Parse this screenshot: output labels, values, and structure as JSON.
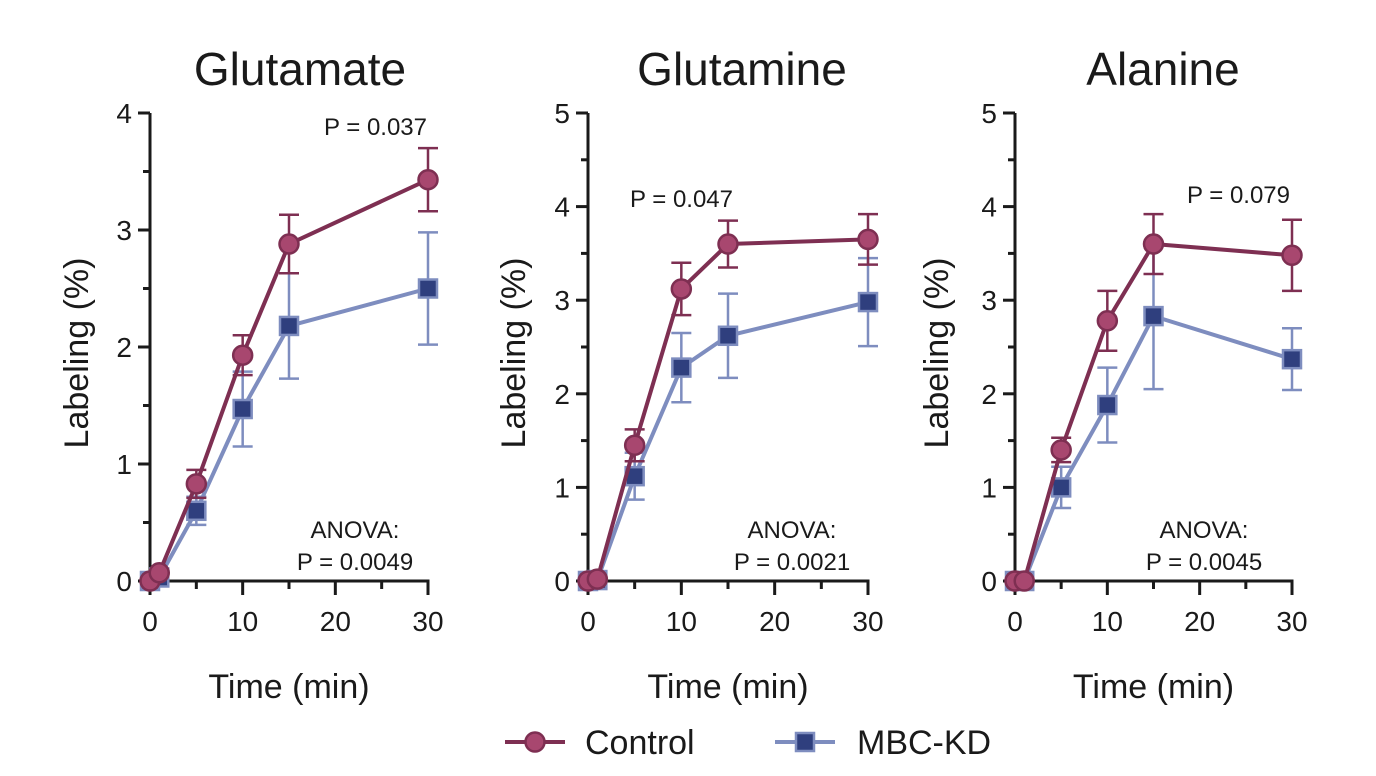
{
  "chart_data": [
    {
      "type": "line",
      "title": "Glutamate",
      "xlabel": "Time (min)",
      "ylabel": "Labeling (%)",
      "xlim": [
        0,
        30
      ],
      "ylim": [
        0,
        4
      ],
      "xticks": [
        "0",
        "10",
        "20",
        "30"
      ],
      "yticks": [
        "0",
        "1",
        "2",
        "3",
        "4"
      ],
      "x": [
        0,
        1,
        5,
        10,
        15,
        30
      ],
      "series": [
        {
          "name": "Control",
          "values": [
            0,
            0.07,
            0.83,
            1.93,
            2.88,
            3.43
          ],
          "err": [
            0.02,
            0.03,
            0.12,
            0.17,
            0.25,
            0.27
          ]
        },
        {
          "name": "MBC-KD",
          "values": [
            0,
            0.03,
            0.6,
            1.47,
            2.18,
            2.5
          ],
          "err": [
            0.02,
            0.02,
            0.12,
            0.32,
            0.45,
            0.48
          ]
        }
      ],
      "p_label": "P = 0.037",
      "anova": [
        "ANOVA:",
        "P = 0.0049"
      ]
    },
    {
      "type": "line",
      "title": "Glutamine",
      "xlabel": "Time (min)",
      "ylabel": "Labeling (%)",
      "xlim": [
        0,
        30
      ],
      "ylim": [
        0,
        5
      ],
      "xticks": [
        "0",
        "10",
        "20",
        "30"
      ],
      "yticks": [
        "0",
        "1",
        "2",
        "3",
        "4",
        "5"
      ],
      "x": [
        0,
        1,
        5,
        10,
        15,
        30
      ],
      "series": [
        {
          "name": "Control",
          "values": [
            0,
            0.02,
            1.45,
            3.12,
            3.6,
            3.65
          ],
          "err": [
            0.02,
            0.02,
            0.17,
            0.28,
            0.25,
            0.27
          ]
        },
        {
          "name": "MBC-KD",
          "values": [
            0,
            0.01,
            1.12,
            2.28,
            2.62,
            2.98
          ],
          "err": [
            0.02,
            0.02,
            0.25,
            0.37,
            0.45,
            0.47
          ]
        }
      ],
      "p_label": "P = 0.047",
      "anova": [
        "ANOVA:",
        "P = 0.0021"
      ]
    },
    {
      "type": "line",
      "title": "Alanine",
      "xlabel": "Time (min)",
      "ylabel": "Labeling (%)",
      "xlim": [
        0,
        30
      ],
      "ylim": [
        0,
        5
      ],
      "xticks": [
        "0",
        "10",
        "20",
        "30"
      ],
      "yticks": [
        "0",
        "1",
        "2",
        "3",
        "4",
        "5"
      ],
      "x": [
        0,
        1,
        5,
        10,
        15,
        30
      ],
      "series": [
        {
          "name": "Control",
          "values": [
            0,
            0,
            1.4,
            2.78,
            3.6,
            3.48
          ],
          "err": [
            0.02,
            0.02,
            0.13,
            0.32,
            0.32,
            0.38
          ]
        },
        {
          "name": "MBC-KD",
          "values": [
            0,
            0,
            1.0,
            1.88,
            2.83,
            2.37
          ],
          "err": [
            0.02,
            0.02,
            0.22,
            0.4,
            0.78,
            0.33
          ]
        }
      ],
      "p_label": "P = 0.079",
      "anova": [
        "ANOVA:",
        "P = 0.0045"
      ]
    }
  ],
  "legend": {
    "position": "bottom-center",
    "items": [
      {
        "label": "Control",
        "marker": "circle"
      },
      {
        "label": "MBC-KD",
        "marker": "square"
      }
    ]
  },
  "colors": {
    "control_line": "#7e2f52",
    "control_fill": "#a8476f",
    "kd_line": "#7e8dbf",
    "kd_fill": "#2f3f7e",
    "axis": "#1a1a1a"
  }
}
